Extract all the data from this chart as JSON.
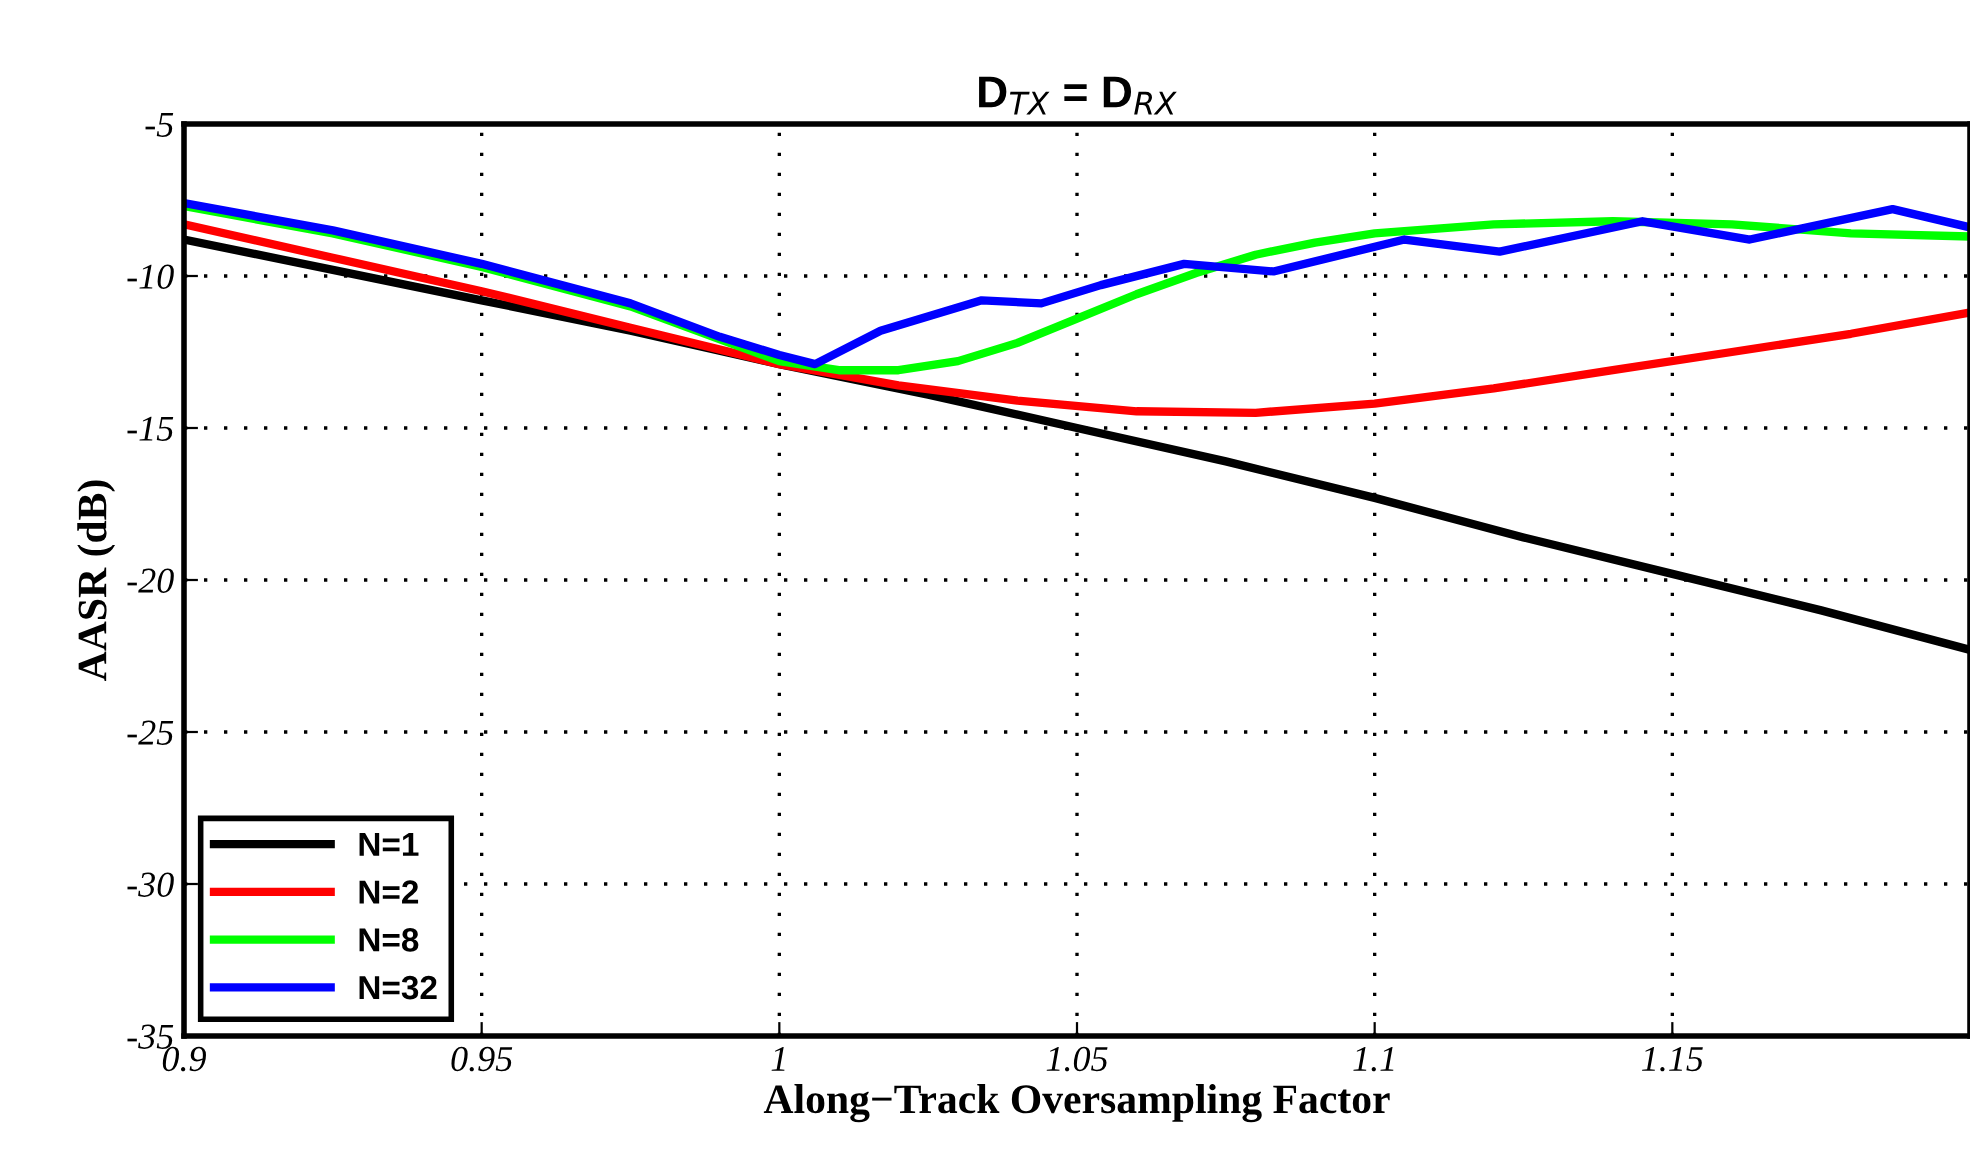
{
  "chart_data": {
    "type": "line",
    "title": "D$_{TX}$ = D$_{RX}$",
    "xlabel": "Along−Track Oversampling Factor",
    "ylabel": "AASR (dB)",
    "xlim": [
      0.9,
      1.2
    ],
    "xticks": [
      0.9,
      0.95,
      1,
      1.05,
      1.1,
      1.15
    ],
    "ylim": [
      -35,
      -5
    ],
    "yticks": [
      -35,
      -30,
      -25,
      -20,
      -15,
      -10,
      -5
    ],
    "grid": true,
    "legend": "bottom left",
    "line_style": "solid",
    "marker": "none",
    "series": [
      {
        "name": "N=1",
        "color": "#000000",
        "x": [
          0.9,
          0.925,
          0.95,
          0.975,
          1.0,
          1.025,
          1.05,
          1.075,
          1.1,
          1.125,
          1.15,
          1.175,
          1.2
        ],
        "values": [
          -8.8,
          -9.8,
          -10.8,
          -11.8,
          -12.9,
          -13.9,
          -15.0,
          -16.1,
          -17.3,
          -18.6,
          -19.8,
          -21.0,
          -22.3
        ]
      },
      {
        "name": "N=2",
        "color": "#ff0000",
        "x": [
          0.9,
          0.925,
          0.95,
          0.975,
          1.0,
          1.02,
          1.04,
          1.06,
          1.08,
          1.1,
          1.12,
          1.14,
          1.16,
          1.18,
          1.2
        ],
        "values": [
          -8.3,
          -9.4,
          -10.5,
          -11.7,
          -12.9,
          -13.6,
          -14.1,
          -14.45,
          -14.5,
          -14.2,
          -13.7,
          -13.1,
          -12.5,
          -11.9,
          -11.2
        ]
      },
      {
        "name": "N=8",
        "color": "#00ff00",
        "x": [
          0.9,
          0.925,
          0.95,
          0.975,
          1.0,
          1.01,
          1.02,
          1.03,
          1.04,
          1.05,
          1.06,
          1.07,
          1.08,
          1.09,
          1.1,
          1.12,
          1.14,
          1.16,
          1.18,
          1.2
        ],
        "values": [
          -7.7,
          -8.6,
          -9.7,
          -11.0,
          -12.8,
          -13.1,
          -13.1,
          -12.8,
          -12.2,
          -11.4,
          -10.6,
          -9.9,
          -9.3,
          -8.9,
          -8.6,
          -8.3,
          -8.2,
          -8.3,
          -8.6,
          -8.7
        ]
      },
      {
        "name": "N=32",
        "color": "#0000ff",
        "x": [
          0.9,
          0.925,
          0.95,
          0.975,
          0.99,
          1.0,
          1.006,
          1.017,
          1.034,
          1.044,
          1.054,
          1.068,
          1.083,
          1.105,
          1.121,
          1.145,
          1.163,
          1.187,
          1.2
        ],
        "values": [
          -7.6,
          -8.5,
          -9.6,
          -10.9,
          -12.0,
          -12.6,
          -12.9,
          -11.8,
          -10.8,
          -10.9,
          -10.3,
          -9.6,
          -9.85,
          -8.8,
          -9.2,
          -8.2,
          -8.8,
          -7.8,
          -8.4
        ]
      }
    ]
  }
}
